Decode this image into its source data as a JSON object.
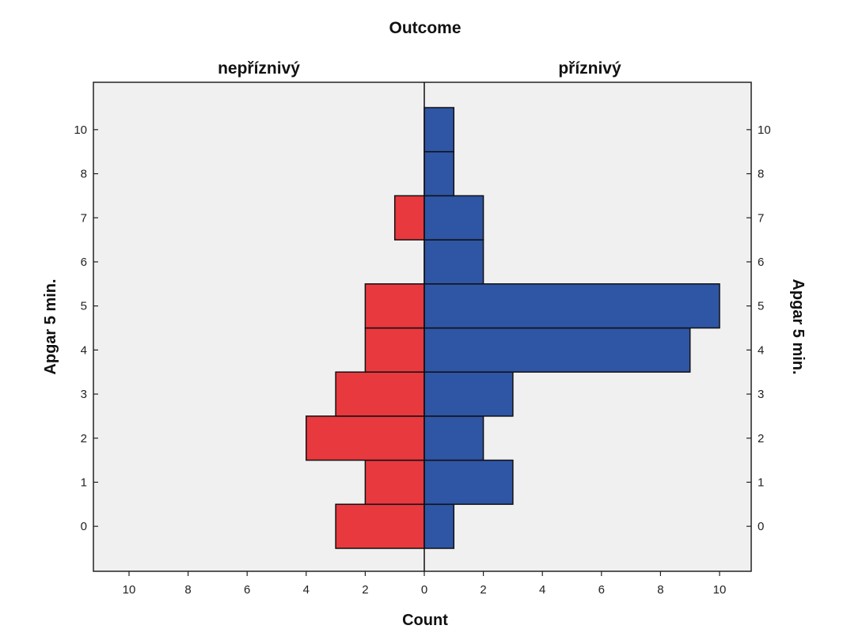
{
  "chart_data": {
    "type": "bar",
    "orientation": "horizontal-pyramid",
    "title": "Outcome",
    "xlabel": "Count",
    "ylabel": "Apgar 5 min.",
    "ylabel_right": "Apgar 5 min.",
    "categories": [
      "0",
      "1",
      "2",
      "3",
      "4",
      "5",
      "6",
      "7",
      "8",
      "10"
    ],
    "xlim": [
      0,
      10
    ],
    "x_ticks": [
      "10",
      "8",
      "6",
      "4",
      "2",
      "0",
      "2",
      "4",
      "6",
      "8",
      "10"
    ],
    "grid": false,
    "background": "#f0f0f0",
    "series": [
      {
        "name": "nepříznivý",
        "side": "left",
        "color": "#e8393f",
        "values": [
          3,
          2,
          4,
          3,
          2,
          2,
          0,
          1,
          0,
          0
        ]
      },
      {
        "name": "příznivý",
        "side": "right",
        "color": "#2f55a5",
        "values": [
          1,
          3,
          2,
          3,
          9,
          10,
          2,
          2,
          1,
          1
        ]
      }
    ]
  }
}
